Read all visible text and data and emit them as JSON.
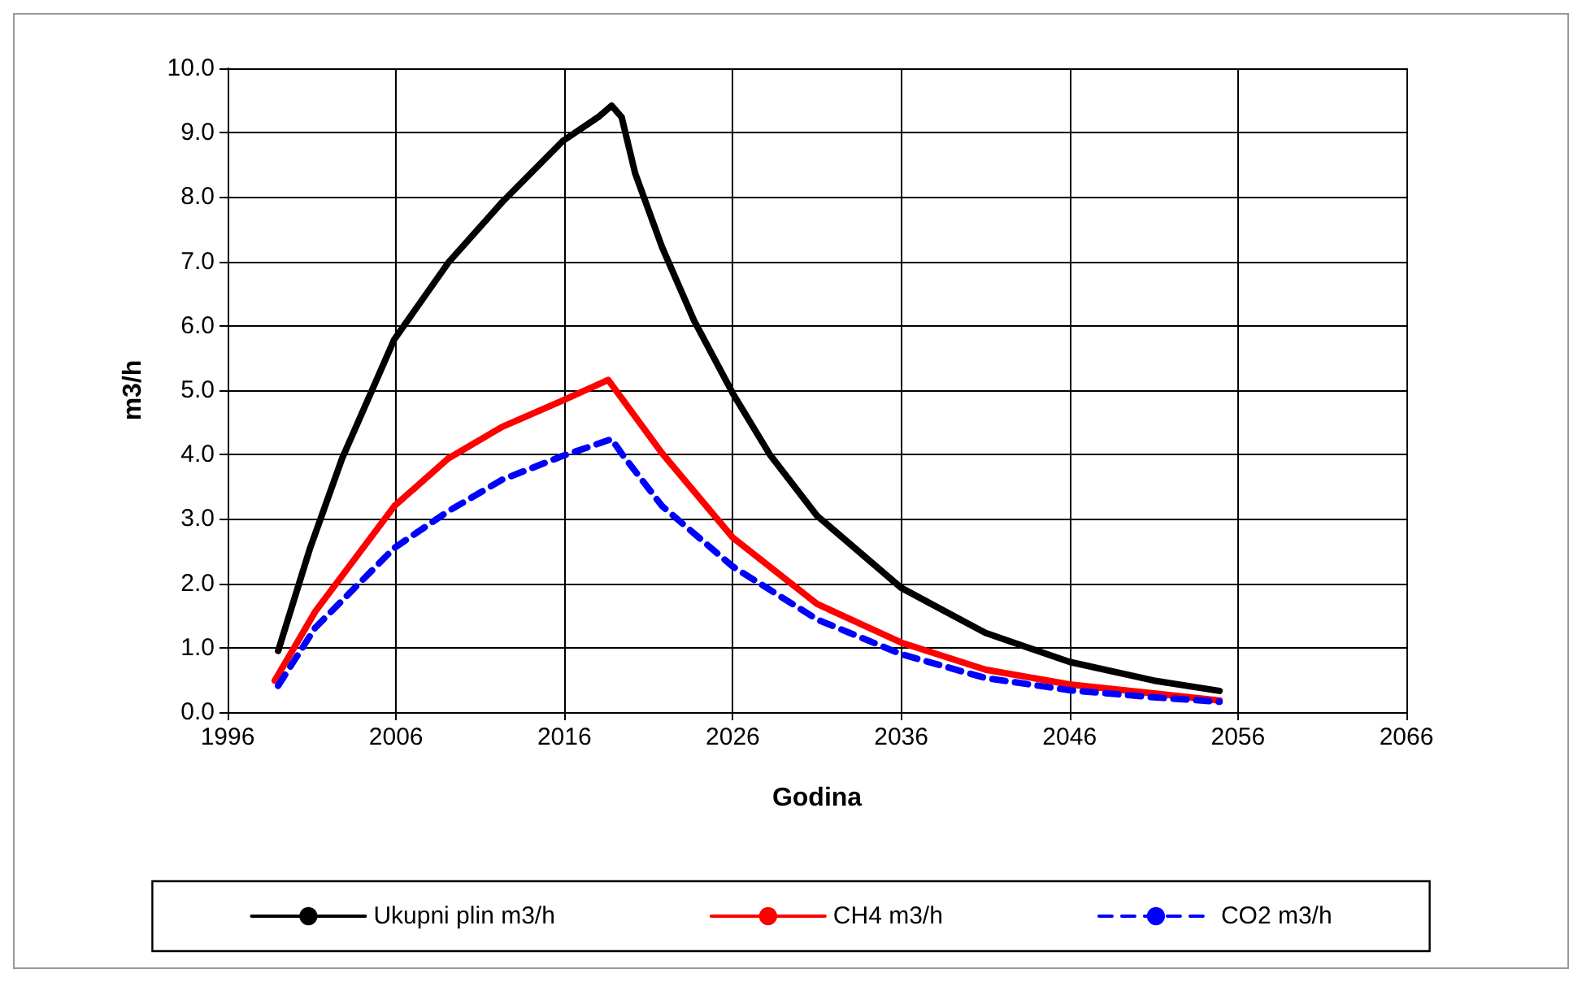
{
  "chart_data": {
    "type": "line",
    "xlabel": "Godina",
    "ylabel": "m3/h",
    "xlim": [
      1996,
      2066
    ],
    "xticks": [
      1996,
      2006,
      2016,
      2026,
      2036,
      2046,
      2056,
      2066
    ],
    "ylim": [
      0,
      10
    ],
    "yticks": [
      {
        "value": 0,
        "label": "0.0"
      },
      {
        "value": 1,
        "label": "1.0"
      },
      {
        "value": 2,
        "label": "2.0"
      },
      {
        "value": 3,
        "label": "3.0"
      },
      {
        "value": 4,
        "label": "4.0"
      },
      {
        "value": 5,
        "label": "5.0"
      },
      {
        "value": 6,
        "label": "6.0"
      },
      {
        "value": 7,
        "label": "7.0"
      },
      {
        "value": 8,
        "label": "8.0"
      },
      {
        "value": 9,
        "label": "9.0"
      },
      {
        "value": 10,
        "label": "10.0"
      }
    ],
    "grid": true,
    "legend": "bottom",
    "marker": "none",
    "series": [
      {
        "name": "Ukupni plin m3/h",
        "color": "#000000",
        "line_style": "solid",
        "x": [
          1999,
          2000.9,
          2002.8,
          2005.9,
          2009.1,
          2012.3,
          2015.9,
          2018,
          2018.8,
          2019.4,
          2020.2,
          2021.8,
          2023.7,
          2026,
          2028.2,
          2031,
          2036,
          2041,
          2046,
          2051,
          2054.9
        ],
        "values": [
          0.95,
          2.55,
          3.94,
          5.79,
          6.98,
          7.92,
          8.87,
          9.24,
          9.42,
          9.24,
          8.37,
          7.22,
          6.08,
          4.95,
          4.0,
          3.05,
          1.93,
          1.23,
          0.78,
          0.49,
          0.33
        ]
      },
      {
        "name": "CH4 m3/h",
        "color": "#ff0000",
        "line_style": "solid",
        "x": [
          1998.8,
          2001.2,
          2005.9,
          2009.1,
          2012.3,
          2015.9,
          2018.6,
          2019.5,
          2021.8,
          2026,
          2031,
          2036,
          2041,
          2046,
          2051,
          2054.9
        ],
        "values": [
          0.49,
          1.56,
          3.2,
          3.94,
          4.43,
          4.84,
          5.16,
          4.84,
          4.02,
          2.71,
          1.68,
          1.08,
          0.66,
          0.43,
          0.29,
          0.18
        ]
      },
      {
        "name": "CO2 m3/h",
        "color": "#0000ff",
        "line_style": "dashed",
        "x": [
          1999,
          2001.2,
          2005.9,
          2009.1,
          2012.3,
          2015.9,
          2018.8,
          2019.5,
          2021.8,
          2026,
          2031,
          2036,
          2041,
          2046,
          2051,
          2054.9
        ],
        "values": [
          0.41,
          1.31,
          2.55,
          3.12,
          3.61,
          3.98,
          4.24,
          3.98,
          3.2,
          2.26,
          1.44,
          0.9,
          0.53,
          0.34,
          0.23,
          0.16
        ]
      }
    ]
  }
}
